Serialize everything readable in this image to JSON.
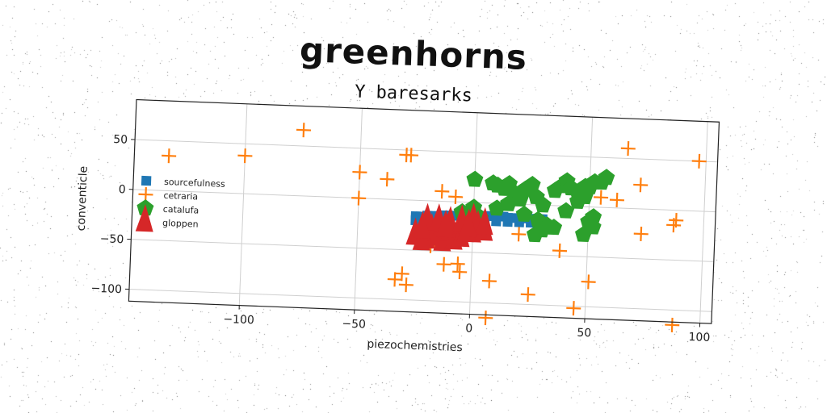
{
  "title": "greenhorns",
  "subtitle": "Y baresarks",
  "chart_data": {
    "type": "scatter",
    "xlabel": "piezochemistries",
    "ylabel": "conventicle",
    "xlim": [
      -148,
      105
    ],
    "ylim": [
      -112,
      90
    ],
    "xticks": [
      -100,
      -50,
      0,
      50,
      100
    ],
    "yticks": [
      50,
      0,
      -50,
      -100
    ],
    "grid": true,
    "legend_position": "center-left",
    "series": [
      {
        "name": "sourcefulness",
        "marker": "square",
        "color": "#1f77b4",
        "x": [
          -25,
          -23,
          -20,
          -18,
          -15,
          -13,
          -10,
          -8,
          -5,
          -3,
          0,
          2,
          5,
          8,
          10,
          13,
          15,
          18,
          20,
          23,
          25,
          28,
          30,
          -25,
          -20,
          -15,
          -10,
          -5,
          0,
          5,
          10,
          15,
          20,
          25,
          30
        ],
        "y": [
          -16,
          -16,
          -15,
          -15,
          -15,
          -14,
          -14,
          -14,
          -13,
          -13,
          -13,
          -13,
          -13,
          -13,
          -13,
          -13,
          -14,
          -14,
          -14,
          -14,
          -14,
          -14,
          -14,
          -20,
          -20,
          -19,
          -19,
          -19,
          -18,
          -18,
          -18,
          -18,
          -18,
          -18,
          -18
        ]
      },
      {
        "name": "cetraria",
        "marker": "plus",
        "color": "#ff7f0e",
        "x": [
          -133,
          -100,
          -75,
          -50,
          -50,
          -38,
          -30,
          -28,
          -14,
          -8,
          0,
          -18,
          -12,
          -6,
          -5,
          -30,
          -33,
          -28,
          8,
          7,
          25,
          38,
          45,
          51,
          55,
          62,
          66,
          72,
          73,
          88,
          87,
          97,
          88,
          20,
          30
        ],
        "y": [
          35,
          38,
          66,
          26,
          0,
          20,
          45,
          45,
          10,
          5,
          -5,
          -45,
          -63,
          -62,
          -70,
          -74,
          -80,
          -85,
          -78,
          -115,
          -90,
          -45,
          -102,
          -75,
          10,
          8,
          60,
          24,
          -25,
          -10,
          -15,
          50,
          -115,
          -30,
          -20
        ]
      },
      {
        "name": "catalufa",
        "marker": "pentagon",
        "color": "#2ca02c",
        "x": [
          0,
          8,
          10,
          13,
          15,
          18,
          20,
          22,
          25,
          27,
          30,
          35,
          38,
          40,
          42,
          45,
          48,
          50,
          52,
          55,
          57,
          10,
          15,
          22,
          28,
          32,
          35,
          40,
          45,
          48,
          50,
          52,
          -5,
          0,
          3,
          30,
          27,
          48,
          52
        ],
        "y": [
          23,
          20,
          18,
          15,
          20,
          10,
          5,
          15,
          20,
          8,
          0,
          15,
          20,
          25,
          18,
          13,
          20,
          20,
          25,
          25,
          30,
          -5,
          0,
          -10,
          -15,
          -20,
          -22,
          -5,
          5,
          10,
          -15,
          -20,
          -10,
          -5,
          -15,
          -25,
          -30,
          -28,
          -10
        ]
      },
      {
        "name": "gloppen",
        "marker": "triangle",
        "color": "#d62728",
        "x": [
          -25,
          -22,
          -20,
          -18,
          -15,
          -13,
          -10,
          -8,
          -5,
          -3,
          0,
          2,
          5,
          -20,
          -15,
          -10,
          -5,
          0,
          5,
          -22,
          -12,
          -2
        ],
        "y": [
          -35,
          -40,
          -38,
          -30,
          -35,
          -40,
          -30,
          -38,
          -35,
          -30,
          -30,
          -25,
          -28,
          -20,
          -20,
          -22,
          -20,
          -18,
          -22,
          -28,
          -26,
          -24
        ]
      }
    ]
  }
}
